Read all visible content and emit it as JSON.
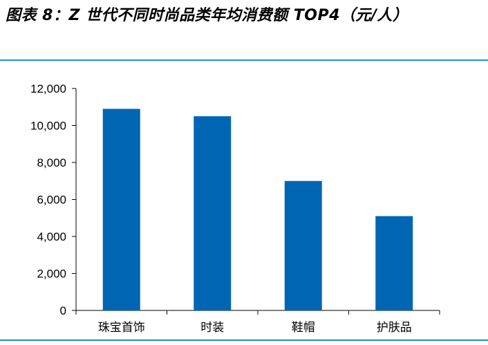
{
  "chart_data": {
    "type": "bar",
    "title": "图表 8：Z 世代不同时尚品类年均消费额 TOP4（元/人）",
    "categories": [
      "珠宝首饰",
      "时装",
      "鞋帽",
      "护肤品"
    ],
    "values": [
      10900,
      10500,
      7000,
      5100
    ],
    "ylim": [
      0,
      12000
    ],
    "yticks": [
      0,
      2000,
      4000,
      6000,
      8000,
      10000,
      12000
    ],
    "ytick_labels": [
      "0",
      "2,000",
      "4,000",
      "6,000",
      "8,000",
      "10,000",
      "12,000"
    ],
    "xlabel": "",
    "ylabel": "",
    "grid": false,
    "legend": "none",
    "bar_color": "#0066b3"
  }
}
